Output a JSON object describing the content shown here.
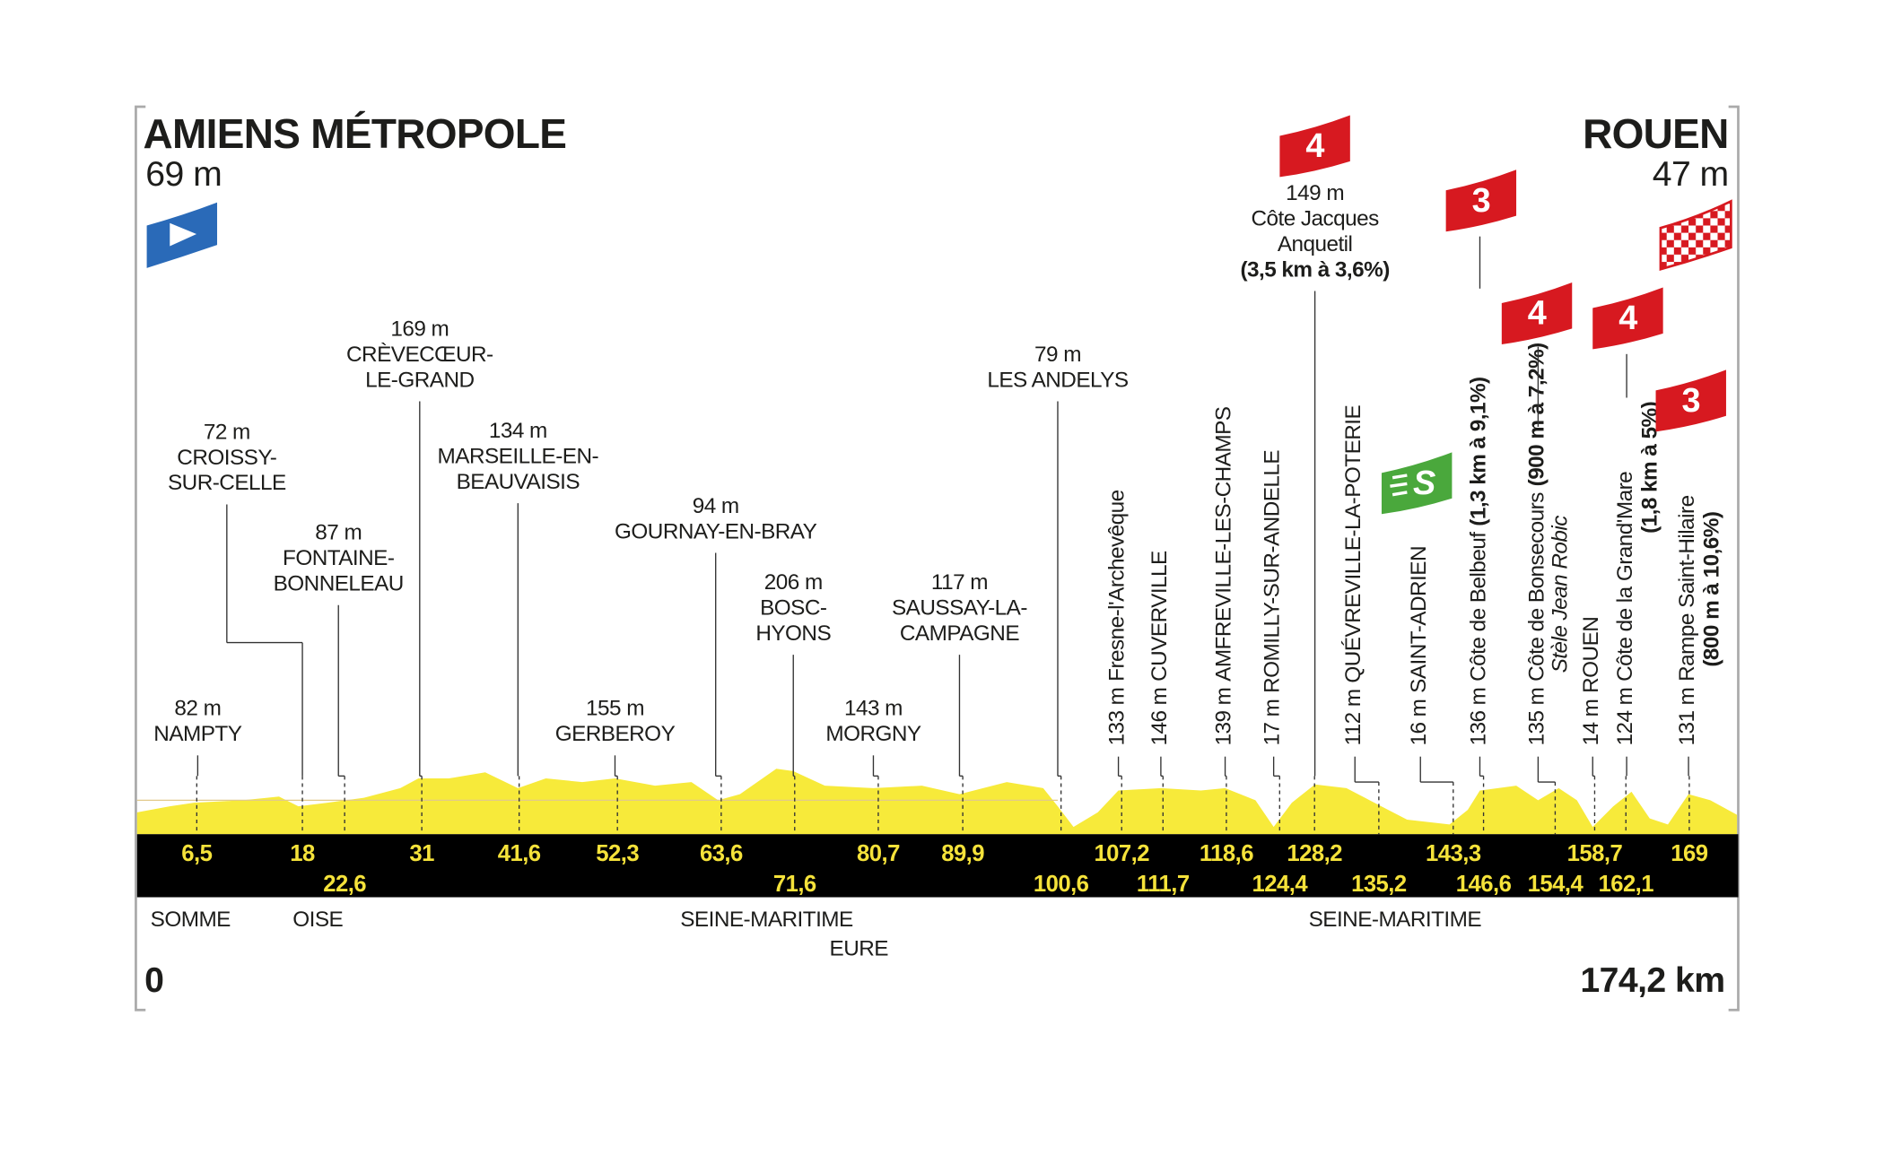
{
  "start": {
    "name": "AMIENS MÉTROPOLE",
    "altitude": "69 m",
    "km": {
      "value": 0,
      "label": "0"
    }
  },
  "finish": {
    "name": "ROUEN",
    "altitude": "47 m",
    "km": {
      "value": 174.2,
      "label": "174,2 km"
    }
  },
  "waypoints": [
    {
      "altitude": "82 m",
      "name": [
        "NAMPTY"
      ],
      "km": {
        "value": 6.5,
        "label": "6,5"
      }
    },
    {
      "altitude": "72 m",
      "name": [
        "CROISSY-",
        "SUR-CELLE"
      ],
      "km": {
        "value": 18,
        "label": "18"
      }
    },
    {
      "altitude": "87 m",
      "name": [
        "FONTAINE-",
        "BONNELEAU"
      ],
      "km": {
        "value": 22.6,
        "label": "22,6"
      }
    },
    {
      "altitude": "169 m",
      "name": [
        "CRÈVECŒUR-",
        "LE-GRAND"
      ],
      "km": {
        "value": 31,
        "label": "31"
      }
    },
    {
      "altitude": "134 m",
      "name": [
        "MARSEILLE-EN-",
        "BEAUVAISIS"
      ],
      "km": {
        "value": 41.6,
        "label": "41,6"
      }
    },
    {
      "altitude": "155 m",
      "name": [
        "GERBEROY"
      ],
      "km": {
        "value": 52.3,
        "label": "52,3"
      }
    },
    {
      "altitude": "94 m",
      "name": [
        "GOURNAY-EN-BRAY"
      ],
      "km": {
        "value": 63.6,
        "label": "63,6"
      }
    },
    {
      "altitude": "206 m",
      "name": [
        "BOSC-",
        "HYONS"
      ],
      "km": {
        "value": 71.6,
        "label": "71,6"
      }
    },
    {
      "altitude": "143 m",
      "name": [
        "MORGNY"
      ],
      "km": {
        "value": 80.7,
        "label": "80,7"
      }
    },
    {
      "altitude": "117 m",
      "name": [
        "SAUSSAY-LA-",
        "CAMPAGNE"
      ],
      "km": {
        "value": 89.9,
        "label": "89,9"
      }
    },
    {
      "altitude": "79 m",
      "name": [
        "LES ANDELYS"
      ],
      "km": {
        "value": 100.6,
        "label": "100,6"
      }
    },
    {
      "altitude": "133 m",
      "name": [
        "Fresne-l'Archevêque"
      ],
      "km": {
        "value": 107.2,
        "label": "107,2"
      }
    },
    {
      "altitude": "146 m",
      "name": [
        "CUVERVILLE"
      ],
      "km": {
        "value": 111.7,
        "label": "111,7"
      }
    },
    {
      "altitude": "139 m",
      "name": [
        "AMFREVILLE-LES-CHAMPS"
      ],
      "km": {
        "value": 118.6,
        "label": "118,6"
      }
    },
    {
      "altitude": "17 m",
      "name": [
        "ROMILLY-SUR-ANDELLE"
      ],
      "km": {
        "value": 124.4,
        "label": "124,4"
      }
    },
    {
      "altitude": "149 m",
      "name": [
        "Côte Jacques",
        "Anquetil"
      ],
      "detail": "(3,5 km à 3,6%)",
      "badge": {
        "text": "4",
        "kind": "climb"
      },
      "km": {
        "value": 128.2,
        "label": "128,2"
      }
    },
    {
      "altitude": "112 m",
      "name": [
        "QUÉVREVILLE-LA-POTERIE"
      ],
      "km": {
        "value": 135.2,
        "label": "135,2"
      }
    },
    {
      "altitude": "16 m",
      "name": [
        "SAINT-ADRIEN"
      ],
      "badge": {
        "text": "S",
        "kind": "sprint"
      },
      "km": {
        "value": 143.3,
        "label": "143,3"
      }
    },
    {
      "altitude": "136 m",
      "name": [
        "Côte de Belbeuf"
      ],
      "detail": "(1,3 km à 9,1%)",
      "badge": {
        "text": "3",
        "kind": "climb"
      },
      "km": {
        "value": 146.6,
        "label": "146,6"
      }
    },
    {
      "altitude": "135 m",
      "name": [
        "Côte de Bonsecours"
      ],
      "detail": "(900 m à 7,2%)",
      "note": "Stèle Jean Robic",
      "badge": {
        "text": "4",
        "kind": "climb"
      },
      "km": {
        "value": 154.4,
        "label": "154,4"
      }
    },
    {
      "altitude": "14 m",
      "name": [
        "ROUEN"
      ],
      "km": {
        "value": 158.7,
        "label": "158,7"
      }
    },
    {
      "altitude": "124 m",
      "name": [
        "Côte de la Grand'Mare"
      ],
      "detail": "(1,8 km à 5%)",
      "badge": {
        "text": "4",
        "kind": "climb"
      },
      "km": {
        "value": 162.1,
        "label": "162,1"
      }
    },
    {
      "altitude": "131 m",
      "name": [
        "Rampe Saint-Hilaire"
      ],
      "detail": "(800 m à 10,6%)",
      "badge": {
        "text": "3",
        "kind": "climb"
      },
      "km": {
        "value": 169,
        "label": "169"
      }
    }
  ],
  "departments": [
    "SOMME",
    "OISE",
    "SEINE-MARITIME",
    "EURE",
    "SEINE-MARITIME"
  ]
}
